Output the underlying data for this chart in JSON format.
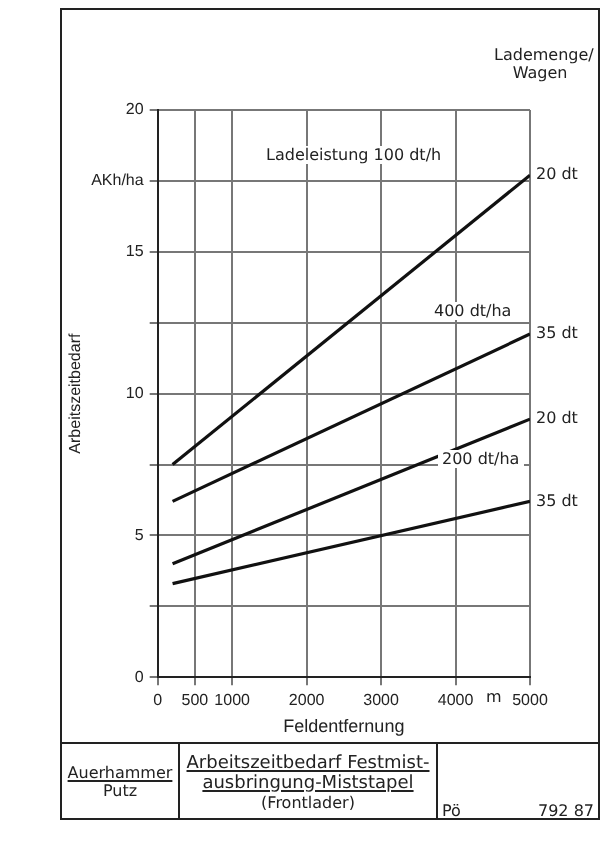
{
  "chart_data": {
    "type": "line",
    "title": "Arbeitszeitbedarf Festmist-ausbringung-Miststapel",
    "subtitle": "(Frontlader)",
    "xlabel": "Feldentfernung",
    "ylabel": "Arbeitszeitbedarf",
    "legend_title": "Lademenge/ Wagen",
    "x": [
      200,
      5000
    ],
    "series": [
      {
        "name": "20 dt",
        "color": "#111111",
        "values": [
          7.5,
          17.7
        ]
      },
      {
        "name": "35 dt",
        "color": "#111111",
        "values": [
          6.2,
          12.1
        ]
      },
      {
        "name": "20 dt",
        "color": "#111111",
        "values": [
          4.0,
          9.1
        ]
      },
      {
        "name": "35 dt",
        "color": "#111111",
        "values": [
          3.3,
          6.2
        ]
      }
    ],
    "xlim": [
      0,
      5000
    ],
    "xticks": [
      0,
      500,
      1000,
      2000,
      3000,
      4000,
      5000
    ],
    "ylim": [
      0,
      20
    ],
    "yticks": [
      0,
      {
        "value": 2.5,
        "label": null
      },
      5,
      {
        "value": 7.5,
        "label": null
      },
      10,
      {
        "value": 12.5,
        "label": null
      },
      15,
      {
        "value": 17.5,
        "label": "AKh/ha"
      },
      20
    ],
    "grid": true,
    "marker": "none",
    "line_style": "solid",
    "annotations": [
      "Ladeleistung 100 dt/h",
      "400 dt/ha",
      "200 dt/ha",
      "m",
      "Auerhammer",
      "Putz",
      "Pö",
      "792 87"
    ]
  }
}
